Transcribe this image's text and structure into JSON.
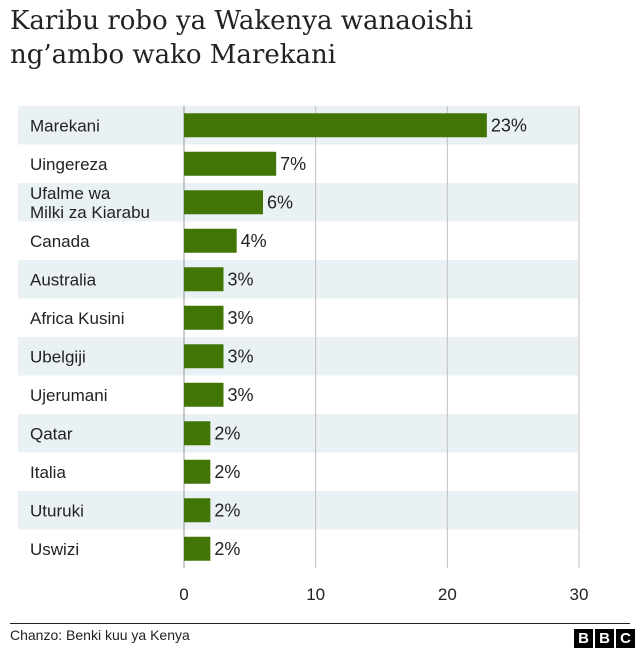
{
  "title_line1": "Karibu robo ya Wakenya wanaoishi",
  "title_line2": "ng’ambo wako Marekani",
  "source": "Chanzo: Benki kuu ya Kenya",
  "logo": [
    "B",
    "B",
    "C"
  ],
  "colors": {
    "bar": "#417505",
    "stripe": "#e9f1f4",
    "text": "#222222",
    "axis": "#bfbfbf"
  },
  "chart_data": {
    "type": "bar",
    "orientation": "horizontal",
    "categories": [
      [
        "Marekani"
      ],
      [
        "Uingereza"
      ],
      [
        "Ufalme wa",
        "Milki za Kiarabu"
      ],
      [
        "Canada"
      ],
      [
        "Australia"
      ],
      [
        "Africa Kusini"
      ],
      [
        "Ubelgiji"
      ],
      [
        "Ujerumani"
      ],
      [
        "Qatar"
      ],
      [
        "Italia"
      ],
      [
        "Uturuki"
      ],
      [
        "Uswizi"
      ]
    ],
    "values": [
      23,
      7,
      6,
      4,
      3,
      3,
      3,
      3,
      2,
      2,
      2,
      2
    ],
    "value_labels": [
      "23%",
      "7%",
      "6%",
      "4%",
      "3%",
      "3%",
      "3%",
      "3%",
      "2%",
      "2%",
      "2%",
      "2%"
    ],
    "xlim": [
      0,
      30
    ],
    "xticks": [
      0,
      10,
      20,
      30
    ],
    "xtick_labels": [
      "0",
      "10",
      "20",
      "30"
    ],
    "grid": true,
    "legend": "none"
  }
}
